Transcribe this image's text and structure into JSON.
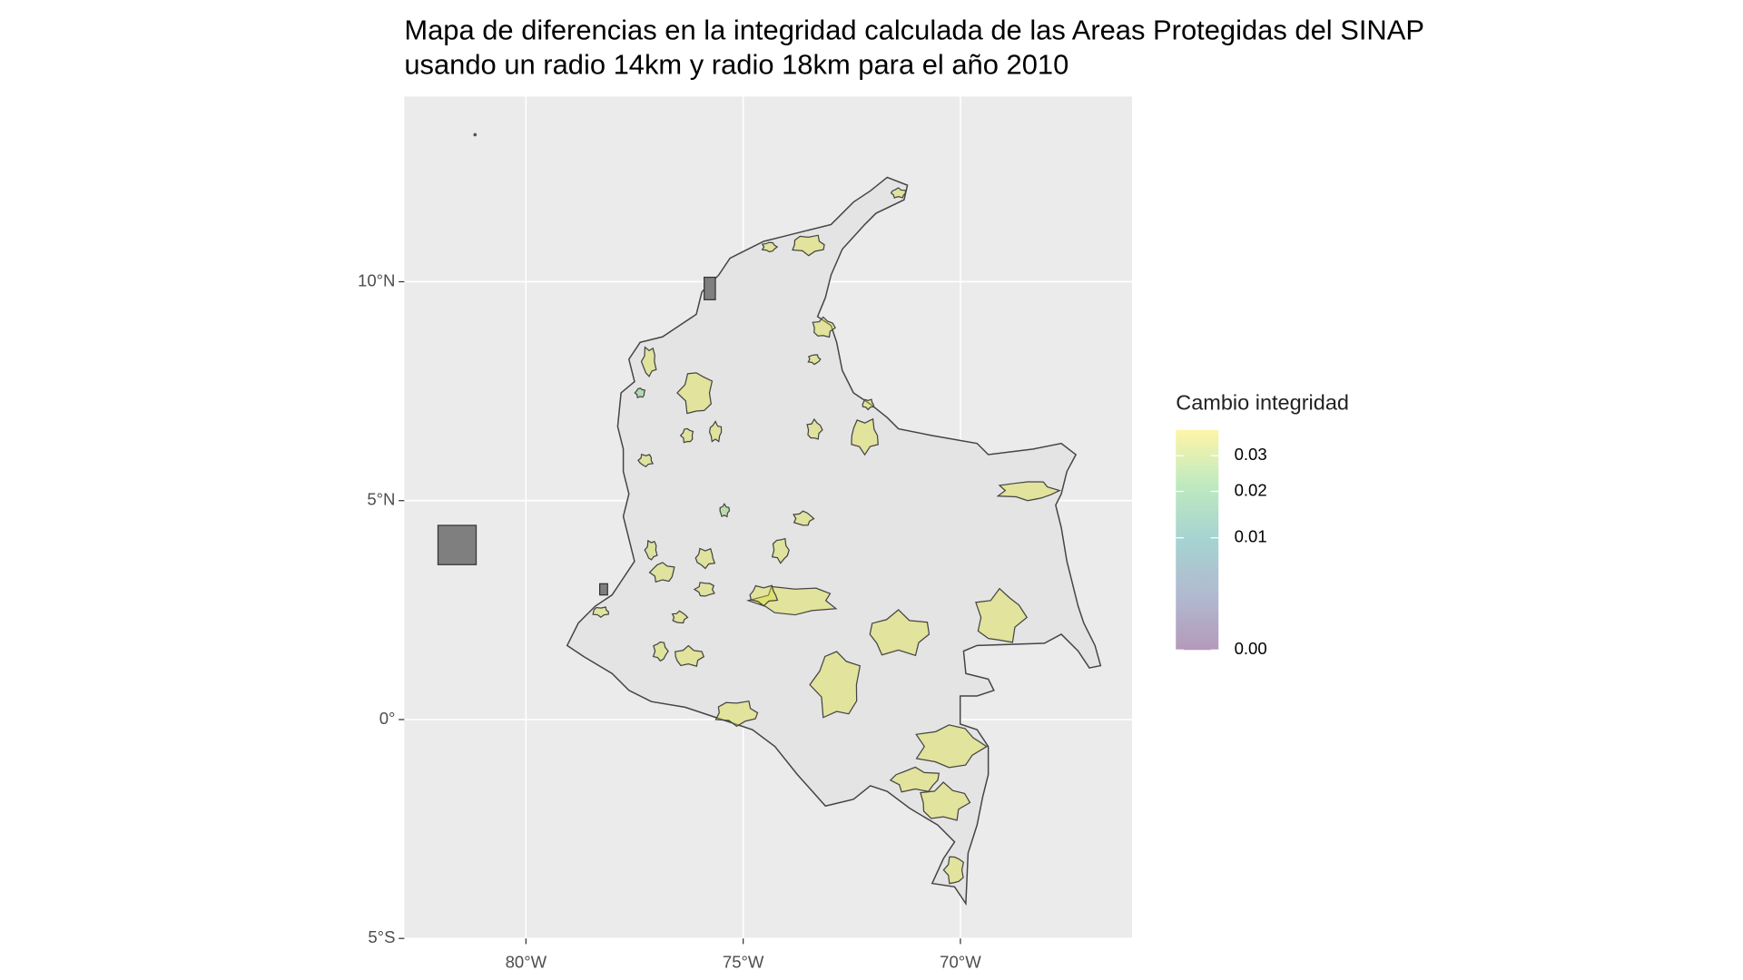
{
  "chart_data": {
    "type": "map",
    "title": "Mapa de diferencias en la integridad calculada de las Areas Protegidas del SINAP",
    "subtitle": "usando un radio 14km y radio 18km para el año 2010",
    "xlim": [
      -82.8,
      -66.05
    ],
    "ylim": [
      -5,
      14.23
    ],
    "xticks": [
      {
        "value": -80,
        "label": "80°W"
      },
      {
        "value": -75,
        "label": "75°W"
      },
      {
        "value": -70,
        "label": "70°W"
      }
    ],
    "yticks": [
      {
        "value": -5,
        "label": "5°S"
      },
      {
        "value": 0,
        "label": "0°"
      },
      {
        "value": 5,
        "label": "5°N"
      },
      {
        "value": 10,
        "label": "10°N"
      }
    ],
    "grid": true,
    "values": [
      0.035,
      0.034,
      0.035,
      0.034,
      0.035,
      0.034,
      0.035,
      0.035,
      0.035,
      0.035,
      0.035,
      0.035,
      0.035,
      0.034,
      0.034,
      0.035,
      0.034,
      0.034,
      0.034,
      0.035,
      0.035,
      0.035,
      0.035,
      0.035,
      0.034,
      0.034,
      0.034,
      0.034,
      0.034,
      0.034,
      0.033,
      0.034,
      0.034,
      0.034,
      0.025,
      0.022
    ],
    "colorbar": {
      "title": "Cambio integridad",
      "lim": [
        0,
        0.0385
      ],
      "trans": "sqrt",
      "ticks": [
        {
          "value": 0,
          "label": "0.00"
        },
        {
          "value": 0.01,
          "label": "0.01"
        },
        {
          "value": 0.02,
          "label": "0.02"
        },
        {
          "value": 0.03,
          "label": "0.03"
        }
      ],
      "colors": [
        "#440154",
        "#3b528b",
        "#21918c",
        "#5ec962",
        "#fde725"
      ],
      "alpha": 0.4,
      "position": "right"
    }
  }
}
